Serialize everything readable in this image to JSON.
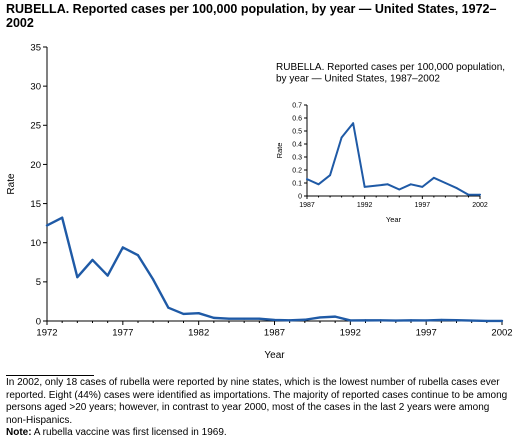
{
  "title": "RUBELLA. Reported cases per 100,000 population, by year — United States, 1972–2002",
  "chart_data": [
    {
      "type": "line",
      "title": "RUBELLA. Reported cases per 100,000 population, by year — United States, 1972–2002",
      "xlabel": "Year",
      "ylabel": "Rate",
      "xlim": [
        1972,
        2002
      ],
      "ylim": [
        0,
        35
      ],
      "x_ticks": [
        1972,
        1977,
        1982,
        1987,
        1992,
        1997,
        2002
      ],
      "y_ticks": [
        0,
        5,
        10,
        15,
        20,
        25,
        30,
        35
      ],
      "grid": false,
      "color": "#1f5aa6",
      "x": [
        1972,
        1973,
        1974,
        1975,
        1976,
        1977,
        1978,
        1979,
        1980,
        1981,
        1982,
        1983,
        1984,
        1985,
        1986,
        1987,
        1988,
        1989,
        1990,
        1991,
        1992,
        1993,
        1994,
        1995,
        1996,
        1997,
        1998,
        1999,
        2000,
        2001,
        2002
      ],
      "values": [
        12.2,
        13.2,
        5.6,
        7.8,
        5.8,
        9.4,
        8.4,
        5.3,
        1.7,
        0.9,
        1.0,
        0.4,
        0.3,
        0.3,
        0.3,
        0.13,
        0.09,
        0.16,
        0.45,
        0.56,
        0.07,
        0.08,
        0.09,
        0.05,
        0.09,
        0.07,
        0.14,
        0.1,
        0.06,
        0.01,
        0.01
      ]
    },
    {
      "type": "line",
      "title": "RUBELLA. Reported cases per 100,000 population, by year — United States, 1987–2002",
      "xlabel": "Year",
      "ylabel": "Rate",
      "xlim": [
        1987,
        2002
      ],
      "ylim": [
        0,
        0.7
      ],
      "x_ticks": [
        1987,
        1992,
        1997,
        2002
      ],
      "y_ticks": [
        0,
        0.1,
        0.2,
        0.3,
        0.4,
        0.5,
        0.6,
        0.7
      ],
      "grid": false,
      "color": "#1f5aa6",
      "x": [
        1987,
        1988,
        1989,
        1990,
        1991,
        1992,
        1993,
        1994,
        1995,
        1996,
        1997,
        1998,
        1999,
        2000,
        2001,
        2002
      ],
      "values": [
        0.13,
        0.09,
        0.16,
        0.45,
        0.56,
        0.07,
        0.08,
        0.09,
        0.05,
        0.09,
        0.07,
        0.14,
        0.1,
        0.06,
        0.01,
        0.01
      ]
    }
  ],
  "footnote": {
    "text": "In 2002, only 18 cases of rubella were reported by nine states, which is the lowest number of rubella cases ever reported. Eight (44%) cases were identified as importations. The majority of reported cases continue to be among persons aged >20 years; however, in contrast to year 2000, most of the cases in the last 2 years were among non-Hispanics.",
    "note_label": "Note:",
    "note_text": " A rubella vaccine was first licensed in 1969."
  }
}
